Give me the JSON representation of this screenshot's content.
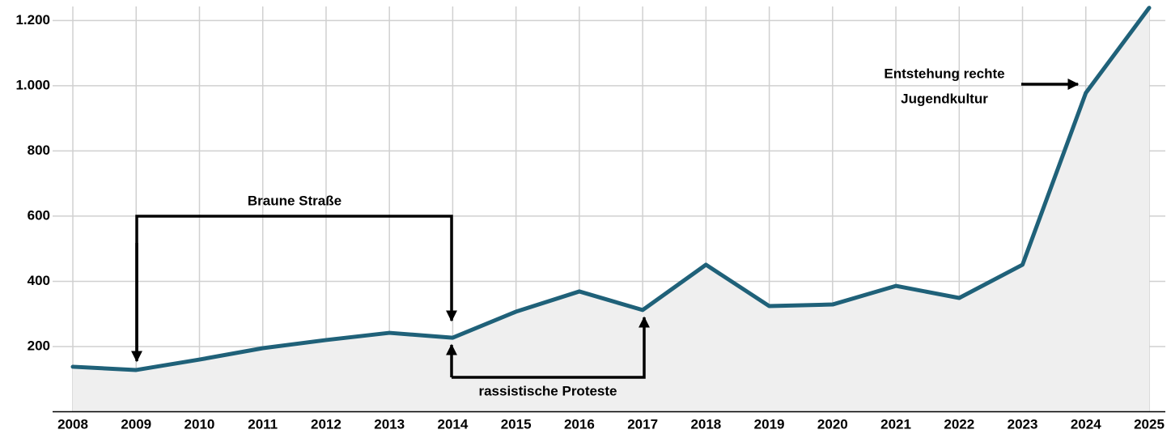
{
  "chart_data": {
    "type": "line",
    "categories": [
      "2008",
      "2009",
      "2010",
      "2011",
      "2012",
      "2013",
      "2014",
      "2015",
      "2016",
      "2017",
      "2018",
      "2019",
      "2020",
      "2021",
      "2022",
      "2023",
      "2024",
      "2025"
    ],
    "series": [
      {
        "color": "#1f6179",
        "values": [
          138,
          128,
          160,
          195,
          220,
          242,
          227,
          307,
          369,
          312,
          451,
          324,
          329,
          386,
          349,
          451,
          978,
          1239
        ]
      }
    ],
    "area_color": "#efefef",
    "ylim": [
      0,
      1263
    ],
    "yticks": [
      200,
      400,
      600,
      800,
      {
        "value": 1000,
        "label": "1.000"
      },
      {
        "value": 1200,
        "label": "1.200"
      }
    ],
    "grid": true,
    "annotations": [
      "Braune Straße",
      "rassistische Proteste",
      "Entstehung rechte",
      "Jugendkultur"
    ]
  }
}
